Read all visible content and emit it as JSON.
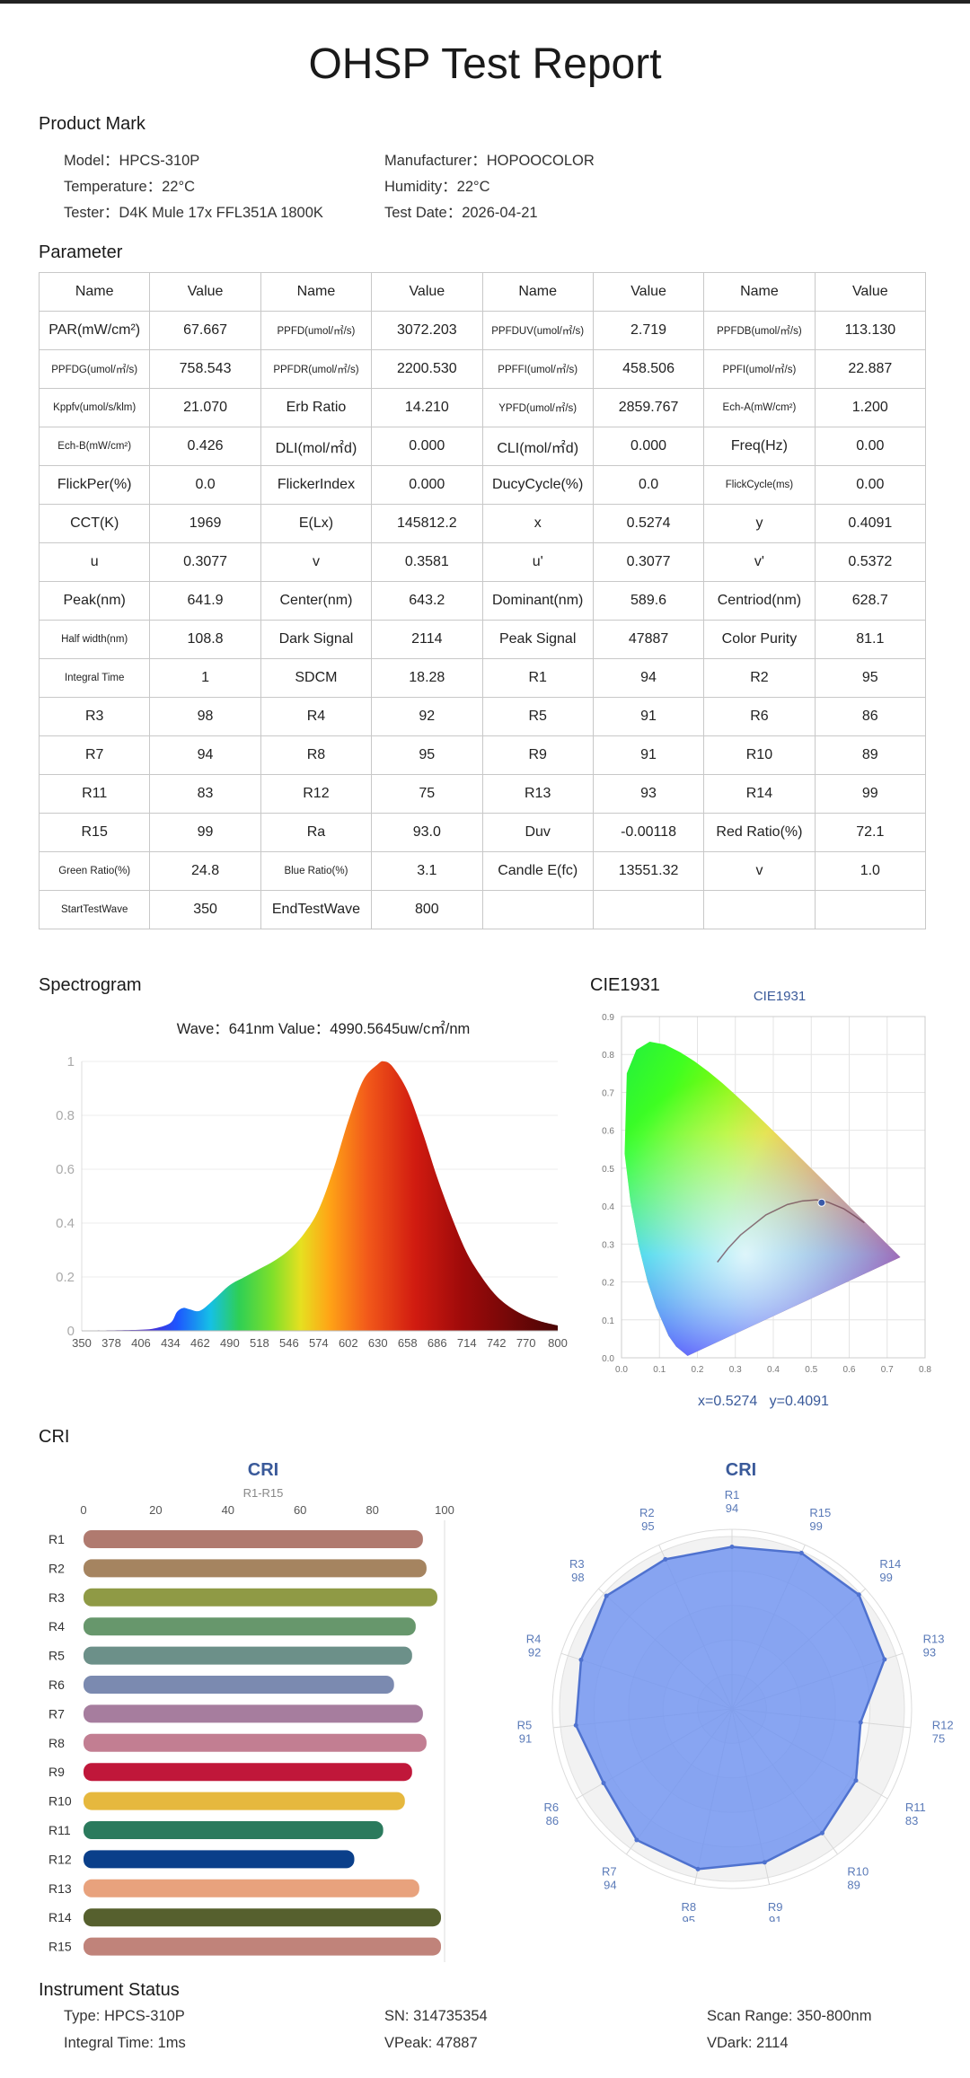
{
  "title": "OHSP Test Report",
  "product": {
    "heading": "Product Mark",
    "model": "Model：HPCS-310P",
    "manufacturer": "Manufacturer：HOPOOCOLOR",
    "temperature": "Temperature：22°C",
    "humidity": "Humidity：22°C",
    "tester": "Tester：D4K Mule 17x FFL351A 1800K",
    "test_date": "Test Date：2026-04-21"
  },
  "parameter": {
    "heading": "Parameter",
    "rows": [
      [
        "Name",
        "Value",
        "Name",
        "Value",
        "Name",
        "Value",
        "Name",
        "Value"
      ],
      [
        "PAR(mW/cm²)",
        "67.667",
        "PPFD(umol/㎡/s)",
        "3072.203",
        "PPFDUV(umol/㎡/s)",
        "2.719",
        "PPFDB(umol/㎡/s)",
        "113.130"
      ],
      [
        "PPFDG(umol/㎡/s)",
        "758.543",
        "PPFDR(umol/㎡/s)",
        "2200.530",
        "PPFFI(umol/㎡/s)",
        "458.506",
        "PPFI(umol/㎡/s)",
        "22.887"
      ],
      [
        "Kppfv(umol/s/klm)",
        "21.070",
        "Erb Ratio",
        "14.210",
        "YPFD(umol/㎡/s)",
        "2859.767",
        "Ech-A(mW/cm²)",
        "1.200"
      ],
      [
        "Ech-B(mW/cm²)",
        "0.426",
        "DLI(mol/㎡d)",
        "0.000",
        "CLI(mol/㎡d)",
        "0.000",
        "Freq(Hz)",
        "0.00"
      ],
      [
        "FlickPer(%)",
        "0.0",
        "FlickerIndex",
        "0.000",
        "DucyCycle(%)",
        "0.0",
        "FlickCycle(ms)",
        "0.00"
      ],
      [
        "CCT(K)",
        "1969",
        "E(Lx)",
        "145812.2",
        "x",
        "0.5274",
        "y",
        "0.4091"
      ],
      [
        "u",
        "0.3077",
        "v",
        "0.3581",
        "u'",
        "0.3077",
        "v'",
        "0.5372"
      ],
      [
        "Peak(nm)",
        "641.9",
        "Center(nm)",
        "643.2",
        "Dominant(nm)",
        "589.6",
        "Centriod(nm)",
        "628.7"
      ],
      [
        "Half width(nm)",
        "108.8",
        "Dark Signal",
        "2114",
        "Peak Signal",
        "47887",
        "Color Purity",
        "81.1"
      ],
      [
        "Integral Time",
        "1",
        "SDCM",
        "18.28",
        "R1",
        "94",
        "R2",
        "95"
      ],
      [
        "R3",
        "98",
        "R4",
        "92",
        "R5",
        "91",
        "R6",
        "86"
      ],
      [
        "R7",
        "94",
        "R8",
        "95",
        "R9",
        "91",
        "R10",
        "89"
      ],
      [
        "R11",
        "83",
        "R12",
        "75",
        "R13",
        "93",
        "R14",
        "99"
      ],
      [
        "R15",
        "99",
        "Ra",
        "93.0",
        "Duv",
        "-0.00118",
        "Red Ratio(%)",
        "72.1"
      ],
      [
        "Green Ratio(%)",
        "24.8",
        "Blue Ratio(%)",
        "3.1",
        "Candle E(fc)",
        "13551.32",
        "v",
        "1.0"
      ],
      [
        "StartTestWave",
        "350",
        "EndTestWave",
        "800",
        "",
        "",
        "",
        ""
      ]
    ]
  },
  "spectrogram": {
    "heading": "Spectrogram",
    "readout": "Wave：641nm Value：4990.5645uw/c㎡/nm"
  },
  "cie": {
    "heading": "CIE1931",
    "chart_title": "CIE1931",
    "readout": "x=0.5274   y=0.4091"
  },
  "cri": {
    "heading": "CRI",
    "bar_title": "CRI",
    "bar_subtitle": "R1-R15",
    "radar_title": "CRI"
  },
  "instrument": {
    "heading": "Instrument Status",
    "type": "Type: HPCS-310P",
    "sn": "SN: 314735354",
    "scan_range": "Scan Range: 350-800nm",
    "integral_time": "Integral Time: 1ms",
    "vpeak": "VPeak: 47887",
    "vdark": "VDark: 2114"
  },
  "chart_data": [
    {
      "type": "area",
      "name": "spectrogram",
      "x": [
        350,
        378,
        406,
        420,
        434,
        440,
        446,
        452,
        462,
        476,
        490,
        504,
        518,
        532,
        546,
        560,
        574,
        588,
        602,
        616,
        630,
        636,
        644,
        658,
        672,
        686,
        700,
        714,
        728,
        742,
        756,
        770,
        784,
        800
      ],
      "y": [
        0.001,
        0.002,
        0.004,
        0.01,
        0.03,
        0.07,
        0.085,
        0.08,
        0.075,
        0.12,
        0.17,
        0.2,
        0.23,
        0.26,
        0.3,
        0.36,
        0.45,
        0.6,
        0.78,
        0.93,
        0.99,
        1.0,
        0.98,
        0.89,
        0.74,
        0.57,
        0.42,
        0.29,
        0.2,
        0.13,
        0.085,
        0.055,
        0.035,
        0.02
      ],
      "xticks": [
        350,
        378,
        406,
        434,
        462,
        490,
        518,
        546,
        574,
        602,
        630,
        658,
        686,
        714,
        742,
        770,
        800
      ],
      "yticks": [
        0,
        0.2,
        0.4,
        0.6,
        0.8,
        1
      ],
      "xlim": [
        350,
        800
      ],
      "ylim": [
        0,
        1
      ]
    },
    {
      "type": "scatter",
      "name": "cie1931",
      "title": "CIE1931",
      "point": {
        "x": 0.5274,
        "y": 0.4091
      },
      "xticks": [
        0.0,
        0.1,
        0.2,
        0.3,
        0.4,
        0.5,
        0.6,
        0.7,
        0.8
      ],
      "yticks": [
        0.0,
        0.1,
        0.2,
        0.3,
        0.4,
        0.5,
        0.6,
        0.7,
        0.8,
        0.9
      ],
      "xlim": [
        0,
        0.8
      ],
      "ylim": [
        0,
        0.9
      ]
    },
    {
      "type": "bar",
      "name": "cri-bars",
      "title": "CRI",
      "subtitle": "R1-R15",
      "categories": [
        "R1",
        "R2",
        "R3",
        "R4",
        "R5",
        "R6",
        "R7",
        "R8",
        "R9",
        "R10",
        "R11",
        "R12",
        "R13",
        "R14",
        "R15"
      ],
      "values": [
        94,
        95,
        98,
        92,
        91,
        86,
        94,
        95,
        91,
        89,
        83,
        75,
        93,
        99,
        99
      ],
      "colors": [
        "#b07a6f",
        "#a58460",
        "#8f9a45",
        "#67976c",
        "#6c9089",
        "#7b8ab0",
        "#a67d9e",
        "#c27e92",
        "#c0173a",
        "#e6b83e",
        "#2b7a5d",
        "#0a3f8a",
        "#e8a27d",
        "#56602e",
        "#c0837a"
      ],
      "xticks": [
        0,
        20,
        40,
        60,
        80,
        100
      ],
      "xlim": [
        0,
        100
      ]
    },
    {
      "type": "radar",
      "name": "cri-radar",
      "title": "CRI",
      "categories": [
        "R1",
        "R15",
        "R14",
        "R13",
        "R12",
        "R11",
        "R10",
        "R9",
        "R8",
        "R7",
        "R6",
        "R5",
        "R4",
        "R3",
        "R2"
      ],
      "values": [
        94,
        99,
        99,
        93,
        75,
        83,
        89,
        91,
        95,
        94,
        86,
        91,
        92,
        98,
        95
      ],
      "rlim": [
        0,
        100
      ]
    }
  ]
}
